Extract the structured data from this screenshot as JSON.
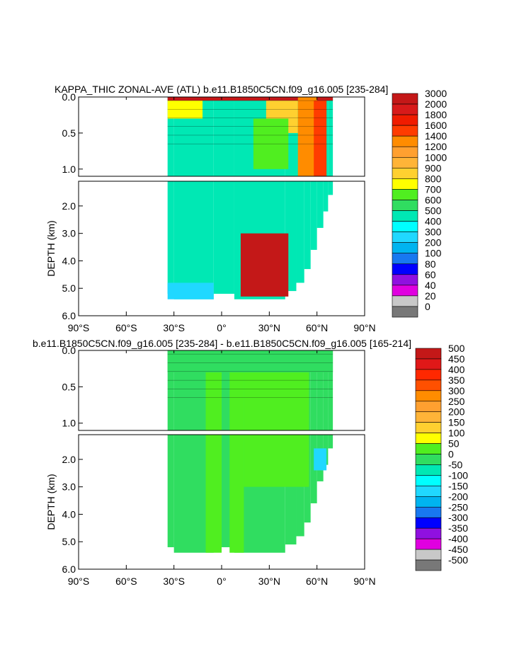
{
  "colors": {
    "frame": "#000000",
    "background": "#ffffff",
    "contour": "#000000"
  },
  "chart_data": [
    {
      "type": "contour",
      "title": "KAPPA_THIC ZONAL-AVE (ATL) b.e11.B1850C5CN.f09_g16.005 [235-284]",
      "ylabel": "DEPTH (km)",
      "xlim": [
        -90,
        90
      ],
      "x_ticks": [
        -90,
        -60,
        -30,
        0,
        30,
        60,
        90
      ],
      "x_tick_labels": [
        "90°S",
        "60°S",
        "30°S",
        "0°",
        "30°N",
        "60°N",
        "90°N"
      ],
      "upper_panel": {
        "ylim": [
          0.0,
          1.1
        ],
        "y_ticks": [
          0.0,
          0.5,
          1.0
        ],
        "y_tick_labels": [
          "0.0",
          "0.5",
          "1.0"
        ]
      },
      "lower_panel": {
        "ylim": [
          1.1,
          6.0
        ],
        "y_ticks": [
          2.0,
          3.0,
          4.0,
          5.0,
          6.0
        ],
        "y_tick_labels": [
          "2.0",
          "3.0",
          "4.0",
          "5.0",
          "6.0"
        ]
      },
      "data_extent": {
        "lat_min": -34,
        "lat_max": 70,
        "max_depth_km": 5.4
      },
      "colorbar": {
        "levels": [
          "3000",
          "2000",
          "1800",
          "1600",
          "1400",
          "1200",
          "1000",
          "900",
          "800",
          "700",
          "600",
          "500",
          "400",
          "300",
          "200",
          "100",
          "80",
          "60",
          "40",
          "20",
          "0"
        ],
        "colors": [
          "#c41818",
          "#d81a1a",
          "#f01c00",
          "#ff3c00",
          "#ff8c00",
          "#ffa030",
          "#ffb438",
          "#ffd030",
          "#ffff00",
          "#50ee20",
          "#30dd60",
          "#00e8b4",
          "#00ffff",
          "#20d8ff",
          "#00b4f0",
          "#1878f0",
          "#0000ff",
          "#9010e0",
          "#e000e0",
          "#c8c8c8",
          "#787878"
        ]
      },
      "fields": {
        "background_value": 400,
        "regions": [
          {
            "label": "surface layer",
            "lat": [
              -34,
              70
            ],
            "depth": [
              0.0,
              0.05
            ],
            "value": 3000
          },
          {
            "label": "thermocline south",
            "lat": [
              -34,
              -12
            ],
            "depth": [
              0.05,
              0.3
            ],
            "value": 700
          },
          {
            "label": "thermocline north",
            "lat": [
              28,
              48
            ],
            "depth": [
              0.05,
              0.5
            ],
            "value": 800
          },
          {
            "label": "subpolar front",
            "lat": [
              48,
              60
            ],
            "depth": [
              0.0,
              1.1
            ],
            "value": 1200
          },
          {
            "label": "high-latitude column",
            "lat": [
              58,
              66
            ],
            "depth": [
              0.05,
              1.1
            ],
            "value": 1400
          },
          {
            "label": "mid-latitude mixing",
            "lat": [
              20,
              42
            ],
            "depth": [
              0.3,
              1.0
            ],
            "value": 600
          },
          {
            "label": "deep southern",
            "lat": [
              -34,
              -5
            ],
            "depth": [
              4.8,
              5.4
            ],
            "value": 200
          },
          {
            "label": "deep patches",
            "lat": [
              12,
              42
            ],
            "depth": [
              3.0,
              5.3
            ],
            "value": 3000
          }
        ]
      }
    },
    {
      "type": "contour",
      "title": "b.e11.B1850C5CN.f09_g16.005 [235-284] - b.e11.B1850C5CN.f09_g16.005 [165-214]",
      "ylabel": "DEPTH (km)",
      "xlim": [
        -90,
        90
      ],
      "x_ticks": [
        -90,
        -60,
        -30,
        0,
        30,
        60,
        90
      ],
      "x_tick_labels": [
        "90°S",
        "60°S",
        "30°S",
        "0°",
        "30°N",
        "60°N",
        "90°N"
      ],
      "upper_panel": {
        "ylim": [
          0.0,
          1.1
        ],
        "y_ticks": [
          0.0,
          0.5,
          1.0
        ],
        "y_tick_labels": [
          "0.0",
          "0.5",
          "1.0"
        ]
      },
      "lower_panel": {
        "ylim": [
          1.1,
          6.0
        ],
        "y_ticks": [
          2.0,
          3.0,
          4.0,
          5.0,
          6.0
        ],
        "y_tick_labels": [
          "2.0",
          "3.0",
          "4.0",
          "5.0",
          "6.0"
        ]
      },
      "data_extent": {
        "lat_min": -34,
        "lat_max": 70,
        "max_depth_km": 5.4
      },
      "colorbar": {
        "levels": [
          "500",
          "450",
          "400",
          "350",
          "300",
          "250",
          "200",
          "150",
          "100",
          "50",
          "0",
          "-50",
          "-100",
          "-150",
          "-200",
          "-250",
          "-300",
          "-350",
          "-400",
          "-450",
          "-500"
        ],
        "colors": [
          "#c41818",
          "#e01818",
          "#ff2800",
          "#ff5000",
          "#ff8c00",
          "#ffa030",
          "#ffb438",
          "#ffd030",
          "#ffff00",
          "#50ee20",
          "#30dd60",
          "#00e8b4",
          "#00ffff",
          "#20d8ff",
          "#00b4f0",
          "#1878f0",
          "#0000ff",
          "#9010e0",
          "#e000e0",
          "#c8c8c8",
          "#787878"
        ]
      },
      "fields": {
        "background_value": -25,
        "regions": [
          {
            "label": "green bands south",
            "lat": [
              -10,
              0
            ],
            "depth": [
              0.3,
              5.4
            ],
            "value": 25
          },
          {
            "label": "green bands equator",
            "lat": [
              5,
              14
            ],
            "depth": [
              0.3,
              5.4
            ],
            "value": 25
          },
          {
            "label": "green block north",
            "lat": [
              14,
              55
            ],
            "depth": [
              0.3,
              3.0
            ],
            "value": 25
          },
          {
            "label": "surface strip",
            "lat": [
              -34,
              70
            ],
            "depth": [
              0.0,
              0.3
            ],
            "value": -25
          },
          {
            "label": "high-latitude minimum",
            "lat": [
              58,
              66
            ],
            "depth": [
              1.6,
              2.4
            ],
            "value": -175
          }
        ]
      }
    }
  ]
}
